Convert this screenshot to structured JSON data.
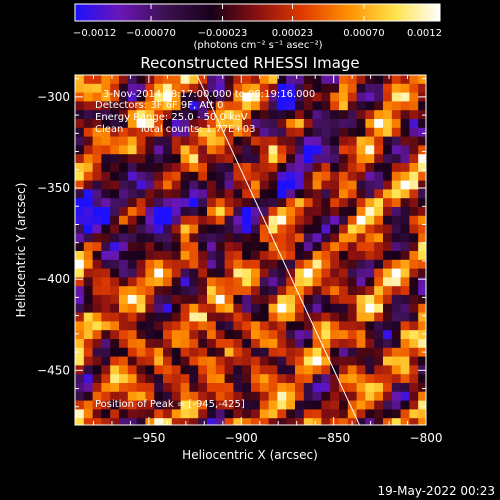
{
  "colorbar": {
    "ticks": [
      {
        "value": -0.0012,
        "label": "−0.0012"
      },
      {
        "value": -0.0007,
        "label": "−0.00070"
      },
      {
        "value": -0.00023,
        "label": "−0.00023"
      },
      {
        "value": 0.00023,
        "label": "0.00023"
      },
      {
        "value": 0.0007,
        "label": "0.00070"
      },
      {
        "value": 0.0012,
        "label": "0.0012"
      }
    ],
    "range": [
      -0.0012,
      0.0012
    ],
    "unit_label": "(photons cm⁻² s⁻¹ asec⁻²)"
  },
  "chart_data": {
    "type": "heatmap",
    "title": "Reconstructed RHESSI Image",
    "xlabel": "Heliocentric X (arcsec)",
    "ylabel": "Heliocentric Y (arcsec)",
    "xlim": [
      -990,
      -800
    ],
    "ylim": [
      -480,
      -288
    ],
    "x_ticks": [
      {
        "value": -950,
        "label": "−950"
      },
      {
        "value": -900,
        "label": "−900"
      },
      {
        "value": -850,
        "label": "−850"
      },
      {
        "value": -800,
        "label": "−800"
      }
    ],
    "y_ticks": [
      {
        "value": -300,
        "label": "−300"
      },
      {
        "value": -350,
        "label": "−350"
      },
      {
        "value": -400,
        "label": "−400"
      },
      {
        "value": -450,
        "label": "−450"
      }
    ],
    "limb_line": {
      "x": [
        -924,
        -836
      ],
      "y": [
        -288,
        -480
      ]
    },
    "annotations": [
      "3-Nov-2014 08:17:00.000 to 08:19:16.000",
      "Detectors: 3F 6F 9F, Att 0",
      "Energy Range: 25.0 - 50.0 keV",
      "Clean     Total counts: 1.77E+03"
    ],
    "peak_label": "Position of Peak = [-945,-425]",
    "grid": false,
    "colormap": [
      "#1e10ff",
      "#6a16b4",
      "#3c1050",
      "#180018",
      "#8a1010",
      "#e03c00",
      "#ff9000",
      "#ffe24a",
      "#ffffff"
    ]
  },
  "footer": {
    "date_label": "19-May-2022 00:23"
  }
}
